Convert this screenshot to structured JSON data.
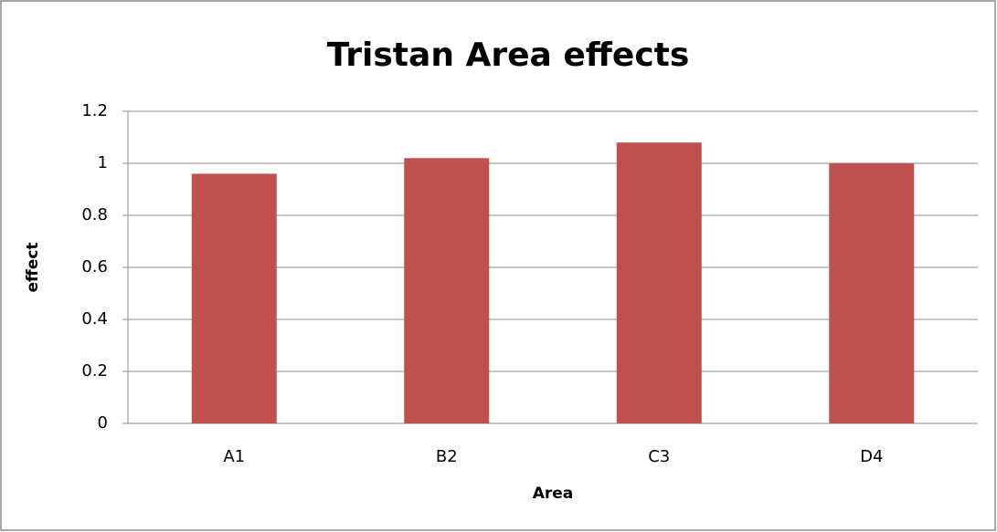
{
  "chart_data": {
    "type": "bar",
    "title": "Tristan Area effects",
    "x_label": "Area",
    "y_label": "effect",
    "categories": [
      "A1",
      "B2",
      "C3",
      "D4"
    ],
    "values": [
      0.96,
      1.02,
      1.08,
      1.0
    ],
    "color": "#c0504d",
    "ylim": [
      0,
      1.2
    ],
    "yticks": [
      0,
      0.2,
      0.4,
      0.6,
      0.8,
      1,
      1.2
    ],
    "grid": true
  }
}
